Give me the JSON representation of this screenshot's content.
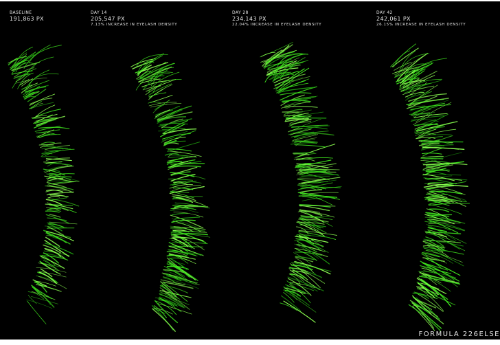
{
  "panels": [
    {
      "day": "BASELINE",
      "pixels": "191,863 PX",
      "increase": ""
    },
    {
      "day": "DAY 14",
      "pixels": "205,547 PX",
      "increase": "7.13% INCREASE IN EYELASH DENSITY"
    },
    {
      "day": "DAY 28",
      "pixels": "234,143 PX",
      "increase": "22.04% INCREASE IN EYELASH DENSITY"
    },
    {
      "day": "DAY 42",
      "pixels": "242,061 PX",
      "increase": "26.15% INCREASE IN EYELASH DENSITY"
    }
  ],
  "footer": "FORMULA 226ELSE",
  "colors": {
    "background": "#000000",
    "lash_light": "#8cff52",
    "lash_mid": "#3fe61e",
    "lash_dark": "#1f9e10",
    "text": "#e6e6e6"
  }
}
